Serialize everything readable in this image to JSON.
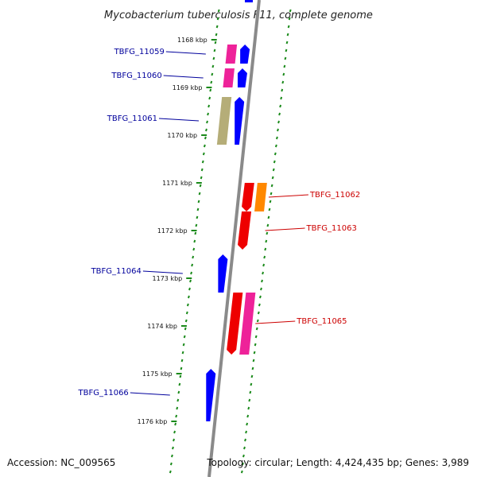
{
  "title": "Mycobacterium tuberculosis F11, complete genome",
  "footer": {
    "accession": "Accession: NC_009565",
    "topology": "Topology: circular; Length: 4,424,435 bp; Genes: 3,989"
  },
  "ticks": [
    {
      "label": "1168 kbp",
      "kbp": 1168
    },
    {
      "label": "1169 kbp",
      "kbp": 1169
    },
    {
      "label": "1170 kbp",
      "kbp": 1170
    },
    {
      "label": "1171 kbp",
      "kbp": 1171
    },
    {
      "label": "1172 kbp",
      "kbp": 1172
    },
    {
      "label": "1173 kbp",
      "kbp": 1173
    },
    {
      "label": "1174 kbp",
      "kbp": 1174
    },
    {
      "label": "1175 kbp",
      "kbp": 1175
    },
    {
      "label": "1176 kbp",
      "kbp": 1176
    }
  ],
  "colors": {
    "forward_label": "#00009c",
    "reverse_label": "#cc0000",
    "backbone": "#8a8a8a",
    "tick": "#1a8a1a",
    "blue_gene": "#0000ff",
    "red_gene": "#ee0000",
    "pink_gene": "#ee2299",
    "orange_gene": "#ff8800",
    "olive_gene": "#b5ad78"
  },
  "genes": [
    {
      "name": "TBFG_11059",
      "strand": "forward",
      "start_kbp": 1168.1,
      "end_kbp": 1168.5,
      "track_color": "pink_gene"
    },
    {
      "name": "TBFG_11060",
      "strand": "forward",
      "start_kbp": 1168.6,
      "end_kbp": 1169.0,
      "track_color": "pink_gene"
    },
    {
      "name": "TBFG_11061",
      "strand": "forward",
      "start_kbp": 1169.2,
      "end_kbp": 1170.2,
      "track_color": "olive_gene"
    },
    {
      "name": "TBFG_11062",
      "strand": "reverse",
      "start_kbp": 1171.0,
      "end_kbp": 1171.6,
      "track_color": "orange_gene"
    },
    {
      "name": "TBFG_11063",
      "strand": "reverse",
      "start_kbp": 1171.6,
      "end_kbp": 1172.4,
      "track_color": null
    },
    {
      "name": "TBFG_11064",
      "strand": "forward",
      "start_kbp": 1172.5,
      "end_kbp": 1173.3,
      "track_color": null
    },
    {
      "name": "TBFG_11065",
      "strand": "reverse",
      "start_kbp": 1173.3,
      "end_kbp": 1174.6,
      "track_color": "pink_gene"
    },
    {
      "name": "TBFG_11066",
      "strand": "forward",
      "start_kbp": 1174.9,
      "end_kbp": 1176.0,
      "track_color": null
    }
  ]
}
